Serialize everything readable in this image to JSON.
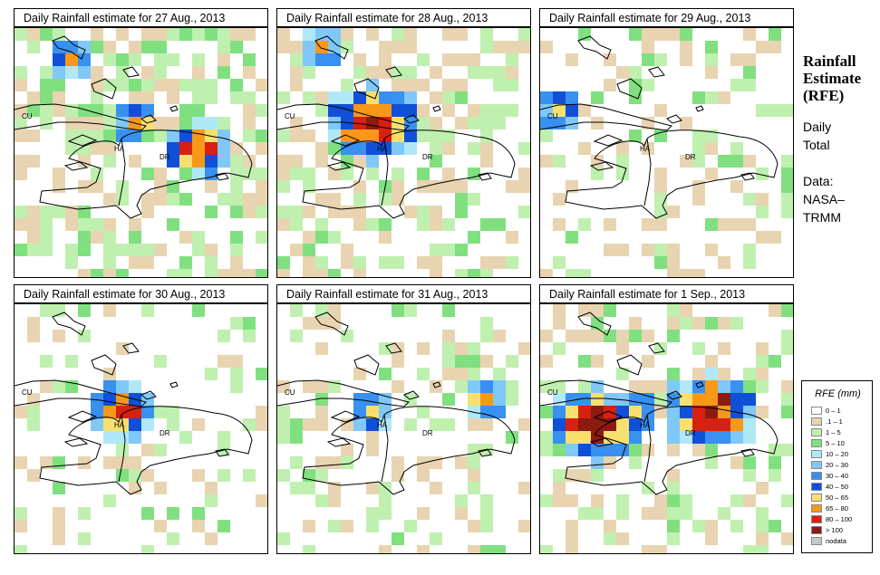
{
  "panels": [
    {
      "title": "Daily Rainfall estimate for  27 Aug., 2013",
      "seed": 27,
      "density": 0.55,
      "wet": [
        {
          "cx": 4,
          "cy": 2,
          "weight": 2
        },
        {
          "cx": 14,
          "cy": 9,
          "weight": 3
        },
        {
          "cx": 9,
          "cy": 7,
          "weight": 2
        }
      ]
    },
    {
      "title": "Daily Rainfall estimate for  28 Aug., 2013",
      "seed": 28,
      "density": 0.5,
      "wet": [
        {
          "cx": 7,
          "cy": 7,
          "weight": 4
        },
        {
          "cx": 3,
          "cy": 1,
          "weight": 2
        }
      ]
    },
    {
      "title": "Daily Rainfall estimate for  29 Aug., 2013",
      "seed": 29,
      "density": 0.3,
      "wet": [
        {
          "cx": 1,
          "cy": 6,
          "weight": 2
        }
      ]
    },
    {
      "title": "Daily Rainfall estimate for  30 Aug., 2013",
      "seed": 30,
      "density": 0.25,
      "wet": [
        {
          "cx": 8,
          "cy": 8,
          "weight": 3
        }
      ]
    },
    {
      "title": "Daily Rainfall estimate for  31 Aug., 2013",
      "seed": 31,
      "density": 0.3,
      "wet": [
        {
          "cx": 7,
          "cy": 8,
          "weight": 2
        },
        {
          "cx": 16,
          "cy": 7,
          "weight": 2
        }
      ]
    },
    {
      "title": "Daily Rainfall estimate for  1 Sep., 2013",
      "seed": 32,
      "density": 0.35,
      "wet": [
        {
          "cx": 4,
          "cy": 9,
          "weight": 4
        },
        {
          "cx": 13,
          "cy": 8,
          "weight": 4
        },
        {
          "cx": 7,
          "cy": 8,
          "weight": 2
        }
      ]
    }
  ],
  "map_labels": {
    "cuba": "CU",
    "haiti": "HA",
    "dominican_republic": "DR"
  },
  "side": {
    "title_lines": [
      "Rainfall",
      "Estimate",
      "(RFE)"
    ],
    "daily_lines": [
      "Daily",
      "Total"
    ],
    "data_lines": [
      "Data:",
      "NASA–",
      "TRMM"
    ]
  },
  "legend": {
    "title": "RFE (mm)",
    "items": [
      {
        "label": "0 – 1",
        "color": "#ffffff"
      },
      {
        "label": ".1 – 1",
        "color": "#e8d4b0"
      },
      {
        "label": "1 – 5",
        "color": "#bff0b0"
      },
      {
        "label": "5 – 10",
        "color": "#80e080"
      },
      {
        "label": "10 – 20",
        "color": "#b0e8f8"
      },
      {
        "label": "20 – 30",
        "color": "#80c8f8"
      },
      {
        "label": "30 – 40",
        "color": "#3890f0"
      },
      {
        "label": "40 – 50",
        "color": "#1050d8"
      },
      {
        "label": "50 – 65",
        "color": "#f8e070"
      },
      {
        "label": "65 – 80",
        "color": "#f89818"
      },
      {
        "label": "80 – 100",
        "color": "#d82010"
      },
      {
        "label": "> 100",
        "color": "#8c1a10"
      },
      {
        "label": "nodata",
        "color": "#c8c8c8"
      }
    ]
  }
}
